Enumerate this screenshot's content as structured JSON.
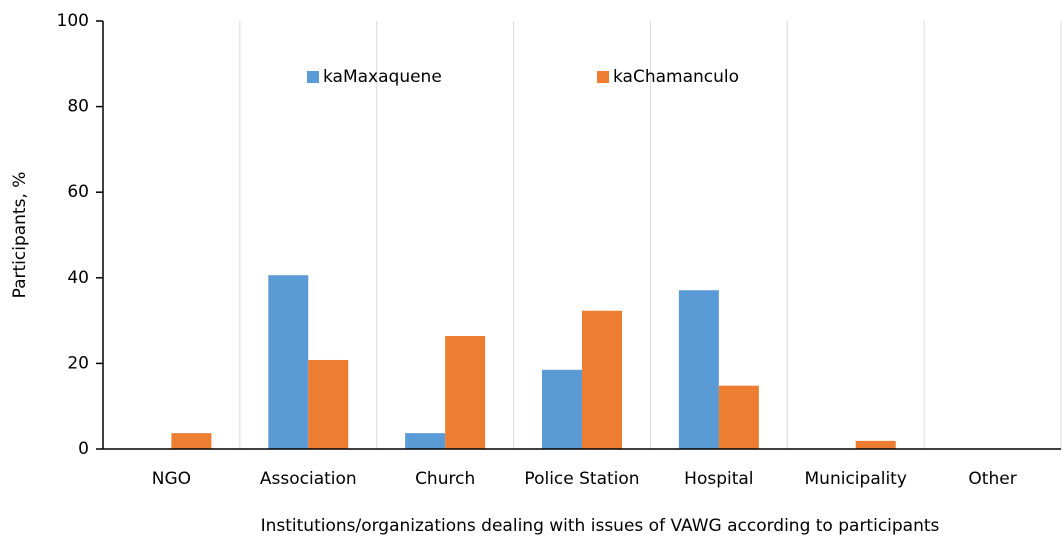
{
  "chart_data": {
    "type": "bar",
    "x_label": "Institutions/organizations dealing with issues of VAWG according to participants",
    "y_label": "Participants, %",
    "categories": [
      "NGO",
      "Association",
      "Church",
      "Police Station",
      "Hospital",
      "Municipality",
      "Other"
    ],
    "series": [
      {
        "name": "kaMaxaquene",
        "color": "#5b9bd5",
        "values": [
          0,
          40.6,
          3.7,
          18.5,
          37.1,
          0,
          0
        ]
      },
      {
        "name": "kaChamanculo",
        "color": "#ed7d31",
        "values": [
          3.7,
          20.8,
          26.4,
          32.3,
          14.8,
          1.9,
          0
        ]
      }
    ],
    "ylim": [
      0,
      100
    ],
    "yticks": [
      0,
      20,
      40,
      60,
      80,
      100
    ],
    "legend": "top"
  }
}
